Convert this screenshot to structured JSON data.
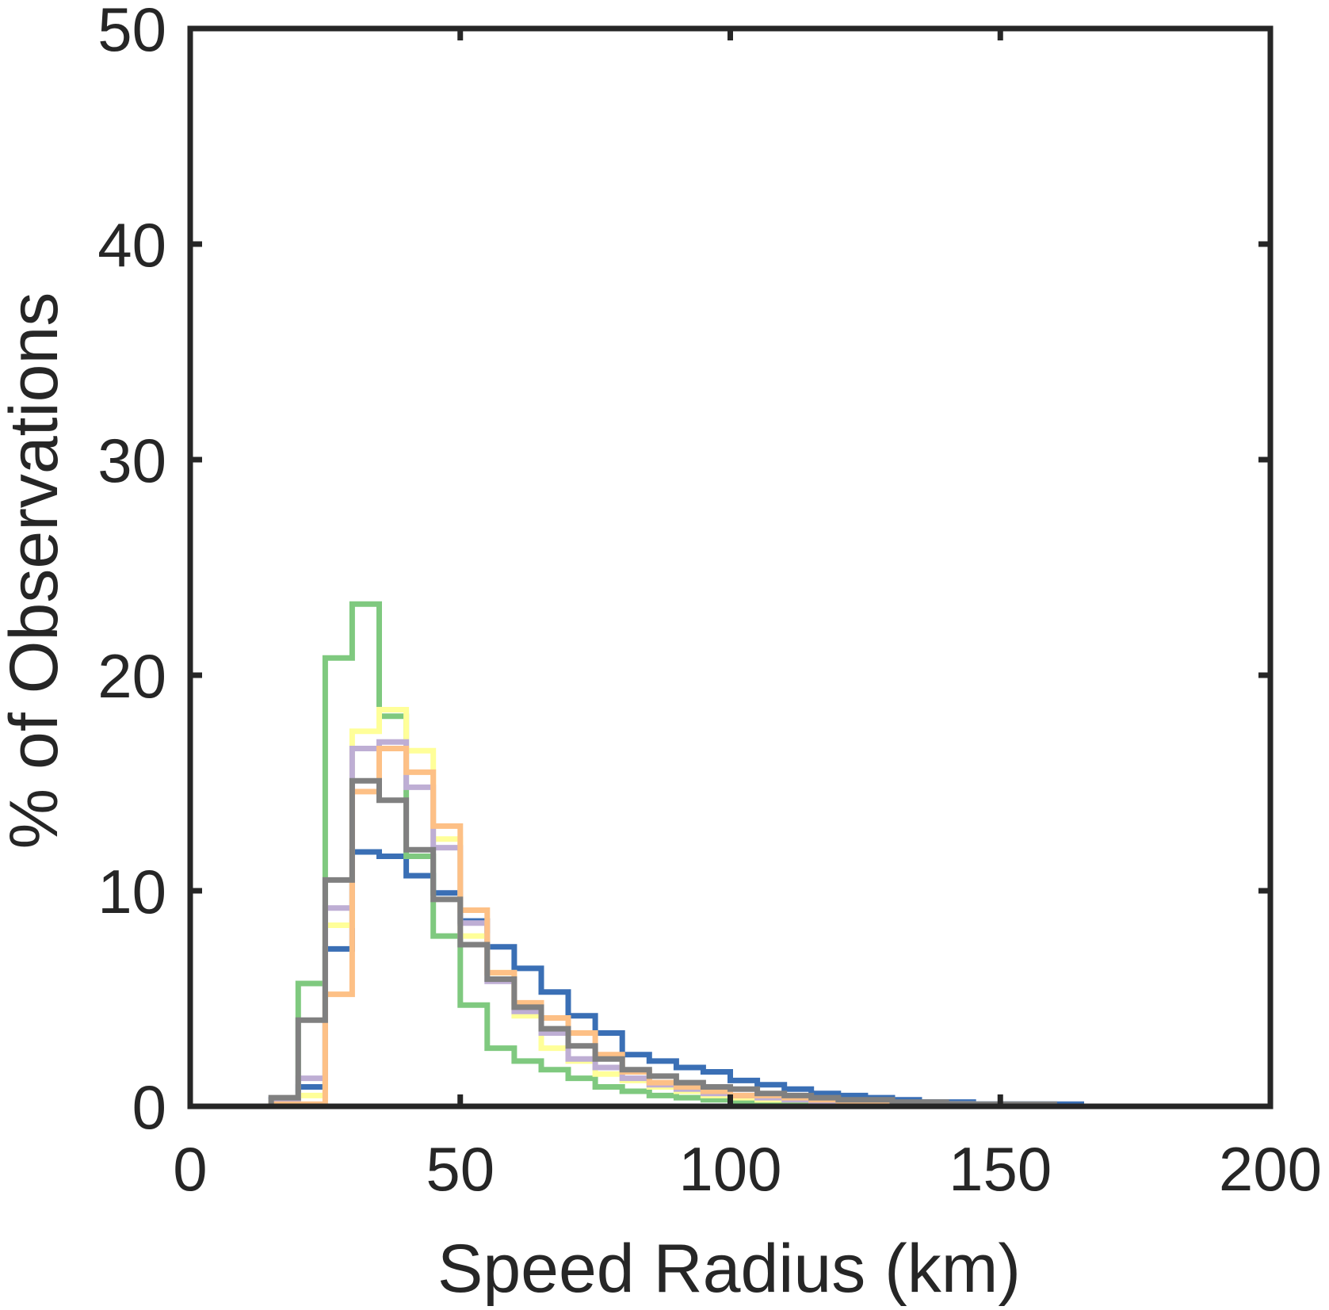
{
  "chart_data": {
    "type": "histogram",
    "xlabel": "Speed Radius (km)",
    "ylabel": "% of Observations",
    "xlim": [
      0,
      200
    ],
    "ylim": [
      0,
      50
    ],
    "xticks": [
      0,
      50,
      100,
      150,
      200
    ],
    "yticks": [
      0,
      10,
      20,
      30,
      40,
      50
    ],
    "grid": false,
    "bin_edges": [
      15,
      20,
      25,
      30,
      35,
      40,
      45,
      50,
      55,
      60,
      65,
      70,
      75,
      80,
      85,
      90,
      95,
      100,
      105,
      110,
      115,
      120,
      125,
      130,
      135,
      140,
      145,
      150,
      155,
      160,
      165
    ],
    "series": [
      {
        "color": "#3a6fb5",
        "values": [
          0.3,
          0.9,
          7.3,
          11.8,
          11.6,
          10.7,
          9.9,
          8.6,
          7.4,
          6.4,
          5.3,
          4.2,
          3.4,
          2.4,
          2.1,
          1.8,
          1.6,
          1.2,
          1.0,
          0.8,
          0.6,
          0.5,
          0.4,
          0.3,
          0.2,
          0.2,
          0.1,
          0.1,
          0.1,
          0.1
        ]
      },
      {
        "color": "#7fc97f",
        "values": [
          0.2,
          5.7,
          20.8,
          23.3,
          18.1,
          11.6,
          7.9,
          4.7,
          2.7,
          2.1,
          1.7,
          1.3,
          0.9,
          0.7,
          0.5,
          0.4,
          0.3,
          0.2,
          0.2,
          0.1,
          0.1,
          0.1,
          0.1,
          0.1,
          0.1,
          0.1,
          0.0,
          0.0,
          0.0,
          0.0
        ]
      },
      {
        "color": "#ffff99",
        "values": [
          0.2,
          0.5,
          8.4,
          17.4,
          18.4,
          16.5,
          12.4,
          7.9,
          6.2,
          4.2,
          2.7,
          2.1,
          1.5,
          1.2,
          0.9,
          0.7,
          0.5,
          0.4,
          0.3,
          0.3,
          0.2,
          0.2,
          0.1,
          0.1,
          0.1,
          0.1,
          0.0,
          0.0,
          0.0,
          0.0
        ]
      },
      {
        "color": "#beaed4",
        "values": [
          0.2,
          1.3,
          9.2,
          16.6,
          16.9,
          14.8,
          12.0,
          8.5,
          5.8,
          4.4,
          3.4,
          2.2,
          1.8,
          1.3,
          1.0,
          0.8,
          0.6,
          0.5,
          0.4,
          0.3,
          0.2,
          0.2,
          0.1,
          0.1,
          0.1,
          0.1,
          0.0,
          0.0,
          0.0,
          0.0
        ]
      },
      {
        "color": "#fdc086",
        "values": [
          0.1,
          0.1,
          5.2,
          14.6,
          16.6,
          15.5,
          13.0,
          9.1,
          6.2,
          4.8,
          4.1,
          3.4,
          2.4,
          1.6,
          1.1,
          0.9,
          0.7,
          0.5,
          0.5,
          0.4,
          0.3,
          0.2,
          0.2,
          0.1,
          0.1,
          0.1,
          0.0,
          0.0,
          0.0,
          0.0
        ]
      },
      {
        "color": "#808080",
        "values": [
          0.4,
          4.0,
          10.5,
          15.1,
          14.2,
          11.9,
          9.6,
          7.5,
          5.9,
          4.6,
          3.6,
          2.8,
          2.2,
          1.7,
          1.4,
          1.1,
          0.9,
          0.8,
          0.6,
          0.5,
          0.4,
          0.3,
          0.3,
          0.2,
          0.2,
          0.1,
          0.1,
          0.1,
          0.1,
          0.0
        ]
      }
    ]
  }
}
